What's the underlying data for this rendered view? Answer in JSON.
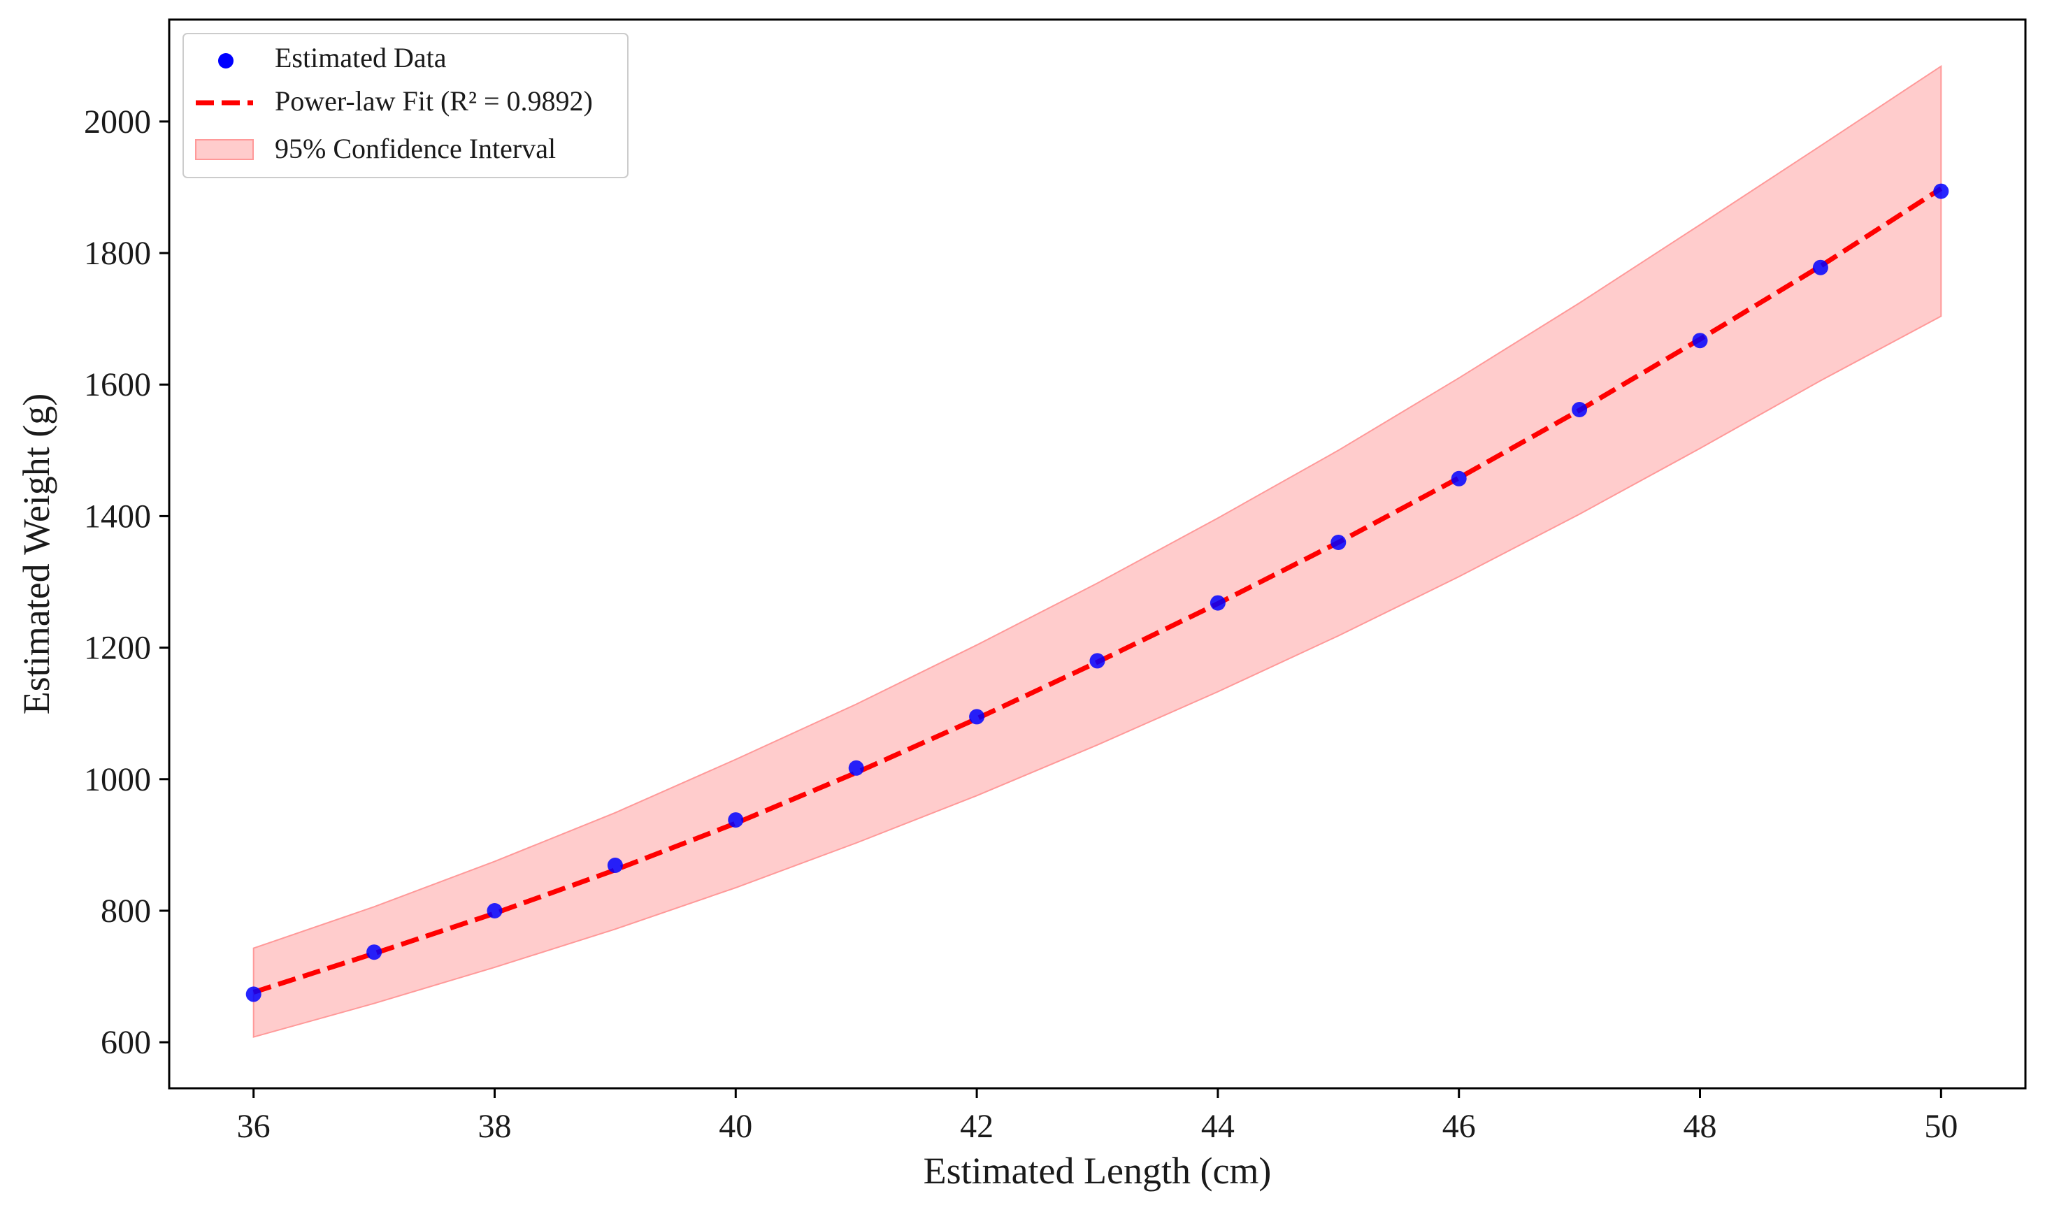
{
  "chart_data": {
    "type": "scatter",
    "title": "",
    "xlabel": "Estimated Length (cm)",
    "ylabel": "Estimated Weight (g)",
    "xlim": [
      35.3,
      50.7
    ],
    "ylim": [
      530,
      2155
    ],
    "xticks": [
      36,
      38,
      40,
      42,
      44,
      46,
      48,
      50
    ],
    "yticks": [
      600,
      800,
      1000,
      1200,
      1400,
      1600,
      1800,
      2000
    ],
    "grid": false,
    "legend_position": "top-left",
    "series": [
      {
        "name": "Estimated Data",
        "kind": "scatter",
        "color": "#0000ff",
        "x": [
          36,
          37,
          38,
          39,
          40,
          41,
          42,
          43,
          44,
          45,
          46,
          47,
          48,
          49,
          50
        ],
        "y": [
          673,
          737,
          800,
          869,
          938,
          1017,
          1095,
          1180,
          1268,
          1360,
          1457,
          1562,
          1667,
          1778,
          1894
        ]
      },
      {
        "name": "Power-law Fit (R² = 0.9892)",
        "kind": "line",
        "style": "dashed",
        "color": "#ff0000",
        "x": [
          36,
          37,
          38,
          39,
          40,
          41,
          42,
          43,
          44,
          45,
          46,
          47,
          48,
          49,
          50
        ],
        "y": [
          676,
          735,
          796,
          862,
          933,
          1010,
          1092,
          1178,
          1267,
          1360,
          1458,
          1561,
          1669,
          1780,
          1898
        ]
      },
      {
        "name": "95% Confidence Interval",
        "kind": "band",
        "color": "#ff9999",
        "x": [
          36,
          37,
          38,
          39,
          40,
          41,
          42,
          43,
          44,
          45,
          46,
          47,
          48,
          49,
          50
        ],
        "lower": [
          608,
          659,
          714,
          772,
          835,
          903,
          975,
          1052,
          1133,
          1218,
          1308,
          1403,
          1503,
          1606,
          1704
        ],
        "upper": [
          743,
          806,
          875,
          949,
          1030,
          1114,
          1204,
          1298,
          1397,
          1500,
          1610,
          1724,
          1843,
          1963,
          2084
        ]
      }
    ]
  }
}
